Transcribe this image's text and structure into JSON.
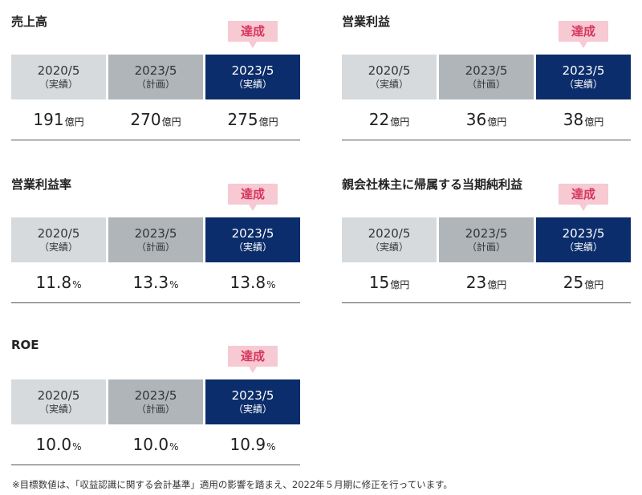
{
  "badge_label": "達成",
  "headers": [
    {
      "year": "2020/5",
      "label": "（実績）"
    },
    {
      "year": "2023/5",
      "label": "（計画）"
    },
    {
      "year": "2023/5",
      "label": "（実績）"
    }
  ],
  "blocks": [
    {
      "title": "売上高",
      "values": [
        {
          "num": "191",
          "unit": "億円"
        },
        {
          "num": "270",
          "unit": "億円"
        },
        {
          "num": "275",
          "unit": "億円"
        }
      ]
    },
    {
      "title": "営業利益",
      "values": [
        {
          "num": "22",
          "unit": "億円"
        },
        {
          "num": "36",
          "unit": "億円"
        },
        {
          "num": "38",
          "unit": "億円"
        }
      ]
    },
    {
      "title": "営業利益率",
      "values": [
        {
          "num": "11.8",
          "unit": "%"
        },
        {
          "num": "13.3",
          "unit": "%"
        },
        {
          "num": "13.8",
          "unit": "%"
        }
      ]
    },
    {
      "title": "親会社株主に帰属する当期純利益",
      "values": [
        {
          "num": "15",
          "unit": "億円"
        },
        {
          "num": "23",
          "unit": "億円"
        },
        {
          "num": "25",
          "unit": "億円"
        }
      ]
    },
    {
      "title": "ROE",
      "values": [
        {
          "num": "10.0",
          "unit": "%"
        },
        {
          "num": "10.0",
          "unit": "%"
        },
        {
          "num": "10.9",
          "unit": "%"
        }
      ]
    }
  ],
  "footnote": "※目標数値は、「収益認識に関する会計基準」適用の影響を踏まえ、2022年５月期に修正を行っています。"
}
